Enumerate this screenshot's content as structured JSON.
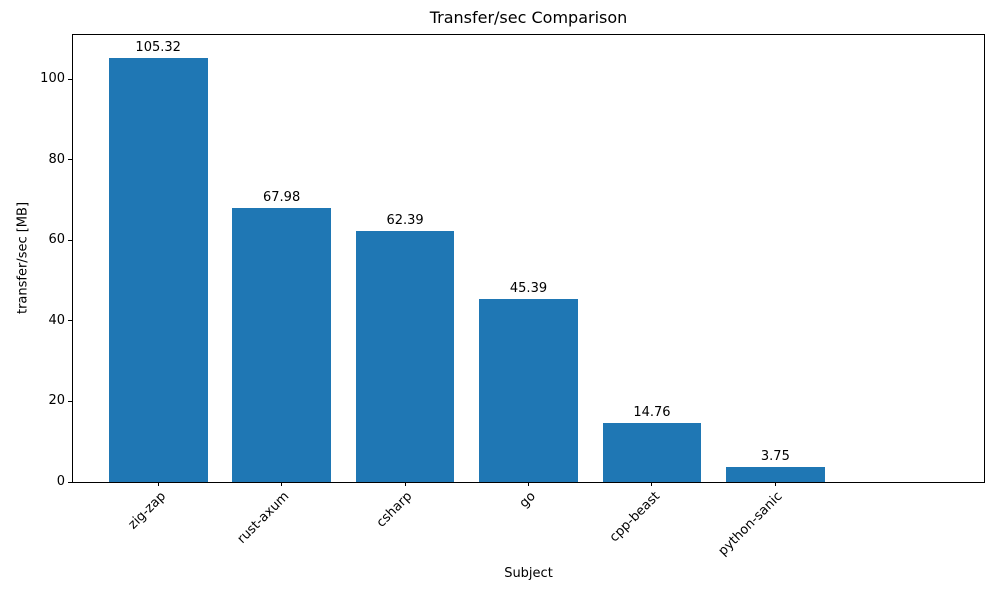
{
  "figure": {
    "background": "#ffffff",
    "text_color": "#000000"
  },
  "chart_data": {
    "type": "bar",
    "title": "Transfer/sec Comparison",
    "xlabel": "Subject",
    "ylabel": "transfer/sec [MB]",
    "categories": [
      "zig-zap",
      "rust-axum",
      "csharp",
      "go",
      "cpp-beast",
      "python-sanic"
    ],
    "values": [
      105.32,
      67.98,
      62.39,
      45.39,
      14.76,
      3.75
    ],
    "value_labels": [
      "105.32",
      "67.98",
      "62.39",
      "45.39",
      "14.76",
      "3.75"
    ],
    "yticks": [
      0,
      20,
      40,
      60,
      80,
      100
    ],
    "ylim": [
      0,
      111
    ],
    "bar_color": "#1f77b4",
    "bar_width_fraction": 0.8,
    "x_tick_rotation_deg": 45,
    "grid": false,
    "legend": "none"
  }
}
